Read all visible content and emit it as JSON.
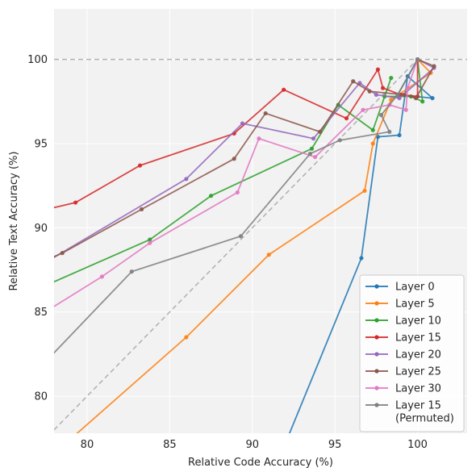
{
  "chart_data": {
    "type": "line",
    "title": "",
    "xlabel": "Relative Code Accuracy (%)",
    "ylabel": "Relative Text Accuracy (%)",
    "xlim": [
      78,
      103
    ],
    "ylim": [
      77.8,
      103
    ],
    "xticks": [
      80,
      85,
      90,
      95,
      100
    ],
    "yticks": [
      80,
      85,
      90,
      95,
      100
    ],
    "grid": true,
    "background": "#f2f2f2",
    "reference_lines": [
      {
        "kind": "horizontal",
        "y": 100,
        "color": "#b3b3b3",
        "style": "dashed"
      },
      {
        "kind": "diagonal",
        "points": [
          [
            78,
            78
          ],
          [
            100,
            100
          ]
        ],
        "color": "#b3b3b3",
        "style": "dashed"
      }
    ],
    "legend": {
      "position": "bottom-right"
    },
    "series": [
      {
        "name": "Layer 0",
        "color": "#1f77b4",
        "points": [
          [
            91.5,
            76.0
          ],
          [
            96.6,
            88.2
          ],
          [
            97.6,
            95.4
          ],
          [
            98.9,
            95.5
          ],
          [
            99.4,
            99.0
          ],
          [
            100.9,
            97.7
          ],
          [
            98.8,
            97.9
          ],
          [
            100.0,
            100.0
          ]
        ]
      },
      {
        "name": "Layer 5",
        "color": "#ff7f0e",
        "points": [
          [
            75.0,
            74.0
          ],
          [
            86.0,
            83.5
          ],
          [
            91.0,
            88.4
          ],
          [
            96.8,
            92.2
          ],
          [
            97.3,
            95.0
          ],
          [
            98.4,
            97.6
          ],
          [
            100.8,
            99.2
          ],
          [
            100.0,
            100.0
          ]
        ]
      },
      {
        "name": "Layer 10",
        "color": "#2ca02c",
        "points": [
          [
            75.0,
            85.5
          ],
          [
            83.8,
            89.3
          ],
          [
            87.5,
            91.9
          ],
          [
            93.6,
            94.7
          ],
          [
            95.2,
            97.3
          ],
          [
            97.3,
            95.8
          ],
          [
            98.4,
            98.9
          ],
          [
            98.0,
            97.8
          ],
          [
            99.6,
            97.8
          ],
          [
            100.3,
            97.5
          ],
          [
            100.0,
            100.0
          ]
        ]
      },
      {
        "name": "Layer 15",
        "color": "#d62728",
        "points": [
          [
            75.0,
            90.5
          ],
          [
            79.3,
            91.5
          ],
          [
            83.2,
            93.7
          ],
          [
            88.9,
            95.6
          ],
          [
            91.9,
            98.2
          ],
          [
            95.7,
            96.5
          ],
          [
            97.6,
            99.4
          ],
          [
            97.9,
            98.3
          ],
          [
            99.0,
            97.9
          ],
          [
            100.0,
            97.8
          ],
          [
            100.0,
            100.0
          ]
        ]
      },
      {
        "name": "Layer 20",
        "color": "#9467bd",
        "points": [
          [
            75.0,
            86.5
          ],
          [
            86.0,
            92.9
          ],
          [
            89.4,
            96.2
          ],
          [
            93.7,
            95.3
          ],
          [
            96.5,
            98.6
          ],
          [
            97.5,
            97.9
          ],
          [
            98.9,
            97.7
          ],
          [
            101.0,
            99.5
          ],
          [
            100.0,
            100.0
          ]
        ]
      },
      {
        "name": "Layer 25",
        "color": "#8c564b",
        "points": [
          [
            75.0,
            87.0
          ],
          [
            78.5,
            88.5
          ],
          [
            83.3,
            91.1
          ],
          [
            88.9,
            94.1
          ],
          [
            90.8,
            96.8
          ],
          [
            94.1,
            95.7
          ],
          [
            96.1,
            98.7
          ],
          [
            97.1,
            98.1
          ],
          [
            99.2,
            97.9
          ],
          [
            99.9,
            97.7
          ],
          [
            101.0,
            99.6
          ],
          [
            100.0,
            100.0
          ]
        ]
      },
      {
        "name": "Layer 30",
        "color": "#e377c2",
        "points": [
          [
            75.0,
            83.5
          ],
          [
            80.9,
            87.1
          ],
          [
            83.8,
            89.1
          ],
          [
            89.1,
            92.1
          ],
          [
            90.4,
            95.3
          ],
          [
            93.8,
            94.2
          ],
          [
            96.7,
            97.0
          ],
          [
            98.3,
            97.3
          ],
          [
            99.3,
            97.0
          ],
          [
            99.4,
            98.3
          ],
          [
            100.0,
            100.0
          ]
        ]
      },
      {
        "name": "Layer 15\n(Permuted)",
        "color": "#7f7f7f",
        "points": [
          [
            75.0,
            79.5
          ],
          [
            82.7,
            87.4
          ],
          [
            89.3,
            89.5
          ],
          [
            93.5,
            94.4
          ],
          [
            95.3,
            95.2
          ],
          [
            98.3,
            95.7
          ],
          [
            97.8,
            96.7
          ],
          [
            98.8,
            97.9
          ],
          [
            100.0,
            100.0
          ]
        ]
      }
    ]
  }
}
